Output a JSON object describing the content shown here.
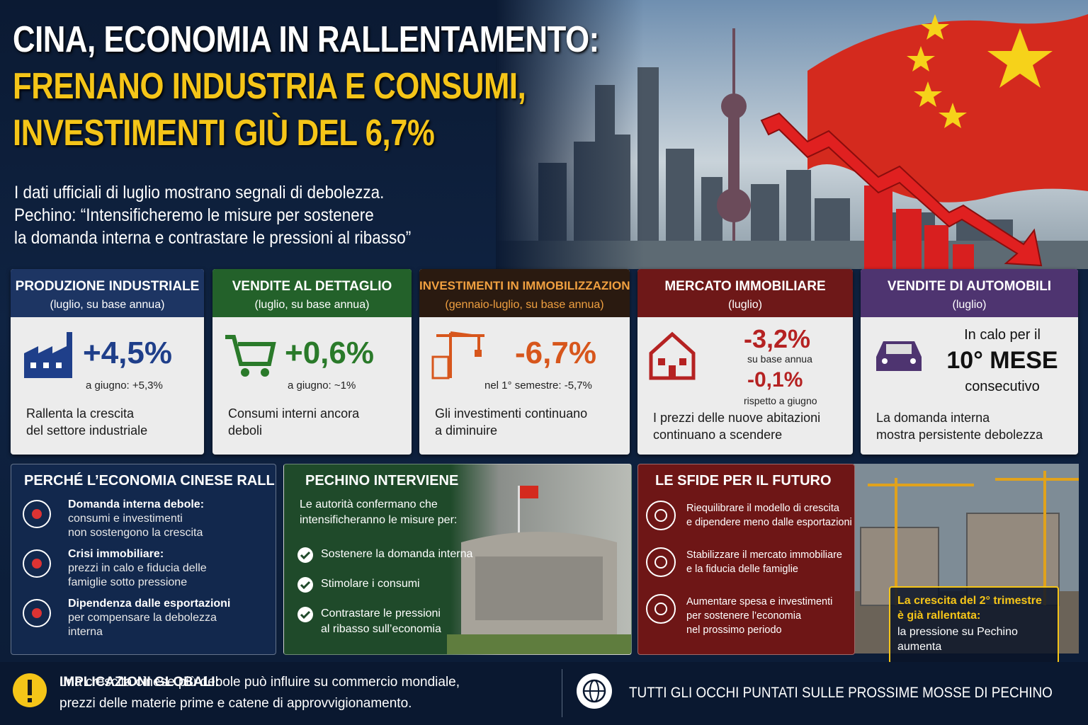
{
  "header": {
    "title_lines": [
      "CINA, ECONOMIA IN RALLENTAMENTO:",
      "FRENANO INDUSTRIA E CONSUMI,",
      "INVESTIMENTI GIÙ DEL 6,7%"
    ],
    "subtitle_lines": [
      "I dati ufficiali di luglio mostrano segnali di debolezza.",
      "Pechino: “Intensificheremo le misure per sostenere",
      "la domanda interna e contrastare le pressioni al ribasso”"
    ]
  },
  "indicators": [
    {
      "title": "PRODUZIONE INDUSTRIALE",
      "period": "(luglio, su base annua)",
      "value": "+4,5%",
      "comparison": "a giugno: +5,3%",
      "description_lines": [
        "Rallenta la crescita",
        "del settore industriale"
      ]
    },
    {
      "title": "VENDITE AL DETTAGLIO",
      "period": "(luglio, su base annua)",
      "value": "+0,6%",
      "comparison": "a giugno: ~1%",
      "description_lines": [
        "Consumi interni ancora",
        "deboli"
      ]
    },
    {
      "title": "INVESTIMENTI IN IMMOBILIZZAZIONI",
      "period": "(gennaio-luglio, su base annua)",
      "value": "-6,7%",
      "comparison": "nel 1° semestre: -5,7%",
      "description_lines": [
        "Gli investimenti continuano",
        "a diminuire"
      ]
    },
    {
      "title": "MERCATO IMMOBILIARE",
      "period": "(luglio)",
      "value": "-3,2%",
      "value_note": "su base annua",
      "second_value": "-0,1%",
      "second_note": "rispetto a giugno",
      "description_lines": [
        "I prezzi delle nuove abitazioni",
        "continuano a scendere"
      ]
    },
    {
      "title": "VENDITE DI AUTOMOBILI",
      "period": "(luglio)",
      "status_lines": [
        "In calo per il",
        "10° MESE",
        "consecutivo"
      ],
      "description_lines": [
        "La domanda interna",
        "mostra persistente debolezza"
      ]
    }
  ],
  "causes": {
    "title": "PERCHÉ L’ECONOMIA CINESE RALLENTA?",
    "items": [
      {
        "heading": "Domanda interna debole:",
        "text_lines": [
          "consumi e investimenti",
          "non sostengono la crescita"
        ]
      },
      {
        "heading": "Crisi immobiliare:",
        "text_lines": [
          "prezzi in calo e fiducia delle",
          "famiglie sotto pressione"
        ]
      },
      {
        "heading": "Dipendenza dalle esportazioni",
        "text_lines": [
          "per compensare la debolezza",
          "interna"
        ]
      }
    ]
  },
  "response": {
    "title": "PECHINO INTERVIENE",
    "intro_lines": [
      "Le autorità confermano che",
      "intensificheranno le misure per:"
    ],
    "items": [
      [
        "Sostenere la domanda interna"
      ],
      [
        "Stimolare i consumi"
      ],
      [
        "Contrastare le pressioni",
        "al ribasso sull’economia"
      ]
    ]
  },
  "challenges": {
    "title": "LE SFIDE PER IL FUTURO",
    "items": [
      [
        "Riequilibrare il modello di crescita",
        "e dipendere meno dalle esportazioni"
      ],
      [
        "Stabilizzare il mercato immobiliare",
        "e la fiducia delle famiglie"
      ],
      [
        "Aumentare spesa e investimenti",
        "per sostenere l’economia",
        "nel prossimo periodo"
      ]
    ]
  },
  "callout": {
    "highlight_lines": [
      "La crescita del 2° trimestre",
      "è già rallentata:"
    ],
    "text_lines": [
      "la pressione su Pechino",
      "aumenta"
    ]
  },
  "footer": {
    "label": "IMPLICAZIONI GLOBALI:",
    "text_lines": [
      "una crescita cinese più debole può influire su commercio mondiale,",
      "prezzi delle materie prime e catene di approvvigionamento."
    ],
    "closing": "TUTTI GLI OCCHI PUNTATI SULLE PROSSIME MOSSE DI PECHINO"
  }
}
